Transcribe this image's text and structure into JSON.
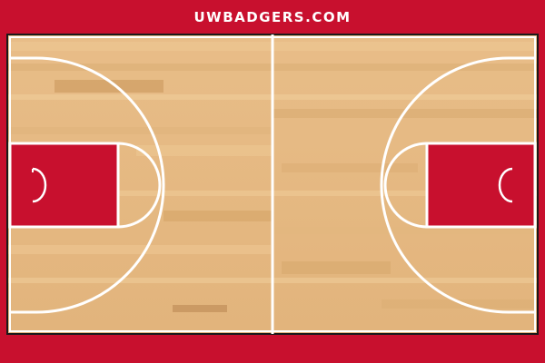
{
  "site": {
    "brand_text": "UWBADGERS.COM"
  },
  "colors": {
    "border_red": "#c8102e",
    "paint_red": "#c8102e",
    "line_white": "#ffffff",
    "wood_light": "#e9bf8b",
    "wood_dark": "#d8a66a",
    "outline_black": "#1a1a1a"
  },
  "court": {
    "type": "basketball-half-court-pair",
    "surface": "hardwood",
    "icons": [
      "half-court-line",
      "three-point-arc-left",
      "three-point-arc-right",
      "paint-left",
      "paint-right",
      "hoop-left",
      "hoop-right",
      "free-throw-circle-left",
      "free-throw-circle-right"
    ]
  }
}
